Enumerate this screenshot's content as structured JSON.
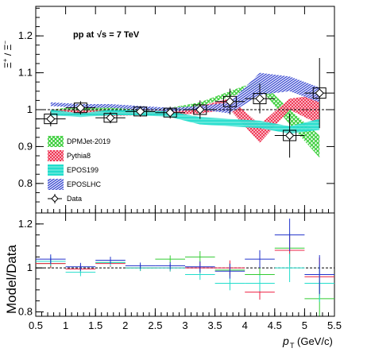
{
  "chart_data": [
    {
      "type": "scatter",
      "panel": "top",
      "annotation_prefix": "pp at",
      "annotation_energy": "√s = 7 TeV",
      "ylabel_num": "Ξ",
      "ylabel_num_sup": "+",
      "ylabel_den": "Ξ",
      "ylabel_den_sup": "−",
      "ylim": [
        0.72,
        1.28
      ],
      "yticks": [
        0.8,
        0.9,
        1.0,
        1.1,
        1.2
      ],
      "ytick_labels": [
        "0.8",
        "0.9",
        "1",
        "1.1",
        "1.2"
      ],
      "xlim": [
        0.5,
        5.5
      ],
      "legend": [
        "DPMJet-2019",
        "Pythia8",
        "EPOS199",
        "EPOSLHC",
        "Data"
      ],
      "colors": {
        "DPMJet-2019": "#33cc33",
        "Pythia8": "#ee2244",
        "EPOS199": "#22ddcc",
        "EPOSLHC": "#2233cc",
        "Data": "#000000"
      },
      "data": [
        {
          "x": 0.75,
          "xerr": 0.25,
          "y": 0.975,
          "stat": 0.02,
          "sys": 0.013
        },
        {
          "x": 1.25,
          "xerr": 0.25,
          "y": 1.005,
          "stat": 0.018,
          "sys": 0.013
        },
        {
          "x": 1.75,
          "xerr": 0.25,
          "y": 0.978,
          "stat": 0.015,
          "sys": 0.012
        },
        {
          "x": 2.25,
          "xerr": 0.25,
          "y": 0.995,
          "stat": 0.014,
          "sys": 0.012
        },
        {
          "x": 2.75,
          "xerr": 0.25,
          "y": 0.992,
          "stat": 0.016,
          "sys": 0.012
        },
        {
          "x": 3.25,
          "xerr": 0.25,
          "y": 1.0,
          "stat": 0.025,
          "sys": 0.013
        },
        {
          "x": 3.75,
          "xerr": 0.25,
          "y": 1.022,
          "stat": 0.035,
          "sys": 0.014
        },
        {
          "x": 4.25,
          "xerr": 0.25,
          "y": 1.03,
          "stat": 0.04,
          "sys": 0.014
        },
        {
          "x": 4.75,
          "xerr": 0.25,
          "y": 0.93,
          "stat": 0.06,
          "sys": 0.014
        },
        {
          "x": 5.25,
          "xerr": 0.25,
          "y": 1.045,
          "stat": 0.095,
          "sys": 0.014
        }
      ],
      "models": [
        {
          "name": "DPMJet-2019",
          "x": [
            0.75,
            1.25,
            1.75,
            2.25,
            2.75,
            3.25,
            3.75,
            4.25,
            4.75,
            5.25
          ],
          "low": [
            0.99,
            0.995,
            0.992,
            0.99,
            0.99,
            1.01,
            1.035,
            1.06,
            0.96,
            0.87
          ],
          "high": [
            1.0,
            1.01,
            1.01,
            1.005,
            1.005,
            1.02,
            1.05,
            1.08,
            1.0,
            0.93
          ]
        },
        {
          "name": "Pythia8",
          "x": [
            0.75,
            1.25,
            1.75,
            2.25,
            2.75,
            3.25,
            3.75,
            4.25,
            4.75,
            5.25
          ],
          "low": [
            0.985,
            0.985,
            0.983,
            0.985,
            0.985,
            0.99,
            1.0,
            0.91,
            1.0,
            0.96
          ],
          "high": [
            1.0,
            0.998,
            0.998,
            1.0,
            0.998,
            1.01,
            1.03,
            0.96,
            1.03,
            1.04
          ]
        },
        {
          "name": "EPOS199",
          "x": [
            0.75,
            1.25,
            1.75,
            2.25,
            2.75,
            3.25,
            3.75,
            4.25,
            4.75,
            5.25
          ],
          "low": [
            0.985,
            0.98,
            0.985,
            0.985,
            0.98,
            0.96,
            0.955,
            0.95,
            0.935,
            0.945
          ],
          "high": [
            1.0,
            0.99,
            1.0,
            0.998,
            0.995,
            0.98,
            0.975,
            0.97,
            0.955,
            0.975
          ]
        },
        {
          "name": "EPOSLHC",
          "x": [
            0.75,
            1.25,
            1.75,
            2.25,
            2.75,
            3.25,
            3.75,
            4.25,
            4.75,
            5.25
          ],
          "low": [
            1.01,
            1.005,
            1.005,
            1.0,
            0.995,
            1.0,
            0.99,
            1.04,
            1.05,
            1.02
          ],
          "high": [
            1.02,
            1.015,
            1.015,
            1.01,
            1.005,
            1.01,
            1.02,
            1.1,
            1.09,
            1.06
          ]
        }
      ]
    },
    {
      "type": "scatter",
      "panel": "bottom",
      "ylabel": "Model/Data",
      "xlabel": "p",
      "xlabel_sub": "T",
      "xlabel_unit": "(GeV/c)",
      "xlim": [
        0.5,
        5.5
      ],
      "xticks": [
        0.5,
        1,
        1.5,
        2,
        2.5,
        3,
        3.5,
        4,
        4.5,
        5,
        5.5
      ],
      "xtick_labels": [
        "0.5",
        "1",
        "1.5",
        "2",
        "2.5",
        "3",
        "3.5",
        "4",
        "4.5",
        "5",
        "5.5"
      ],
      "ylim": [
        0.78,
        1.25
      ],
      "yticks": [
        0.8,
        1.0,
        1.2
      ],
      "ytick_labels": [
        "0.8",
        "1",
        "1.2"
      ],
      "ratios": [
        {
          "name": "DPMJet-2019",
          "values": [
            1.02,
            0.995,
            1.025,
            1.0,
            1.04,
            1.05,
            0.99,
            0.97,
            1.09,
            0.86
          ]
        },
        {
          "name": "Pythia8",
          "values": [
            1.02,
            0.995,
            1.02,
            1.0,
            1.0,
            1.0,
            1.0,
            0.89,
            1.08,
            0.96
          ]
        },
        {
          "name": "EPOS199",
          "values": [
            1.03,
            0.98,
            1.025,
            1.0,
            1.0,
            0.97,
            0.93,
            0.93,
            1.0,
            0.93
          ]
        },
        {
          "name": "EPOSLHC",
          "values": [
            1.04,
            1.005,
            1.035,
            1.01,
            1.01,
            1.005,
            0.985,
            1.04,
            1.15,
            0.97
          ]
        }
      ]
    }
  ]
}
